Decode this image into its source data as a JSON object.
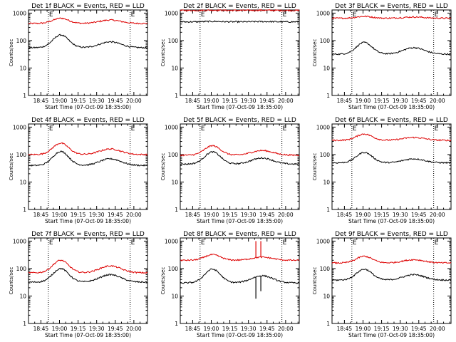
{
  "figure": {
    "ylabel": "Counts/sec",
    "xlabel": "Start Time (07-Oct-09 18:35:00)",
    "x_tick_labels": [
      "18:45",
      "19:00",
      "19:15",
      "19:30",
      "19:45",
      "20:00"
    ],
    "y_tick_labels": [
      "1",
      "10",
      "100",
      "1000"
    ],
    "series_colors": {
      "events": "#000000",
      "lld": "#dd0000"
    },
    "marker_label": "E"
  },
  "chart_data": [
    {
      "type": "line",
      "panel": 1,
      "title": "Det 1f BLACK = Events, RED = LLD",
      "xlabel": "Start Time (07-Oct-09 18:35:00)",
      "ylabel": "Counts/sec",
      "x_range_minutes": [
        0,
        96
      ],
      "ylim": [
        1,
        1000
      ],
      "yscale": "log",
      "dotted_lines_minutes": [
        16,
        82
      ],
      "events": {
        "base": 55,
        "peak1": 160,
        "peak2": 90
      },
      "lld": {
        "base": 420,
        "peak1": 650,
        "peak2": 560
      }
    },
    {
      "type": "line",
      "panel": 2,
      "title": "Det 2f BLACK = Events, RED = LLD",
      "xlabel": "Start Time (07-Oct-09 18:35:00)",
      "ylabel": "Counts/sec",
      "x_range_minutes": [
        0,
        96
      ],
      "ylim": [
        1,
        1000
      ],
      "yscale": "log",
      "dotted_lines_minutes": [
        16,
        82
      ],
      "events": {
        "base": 480,
        "peak1": 500,
        "peak2": 490
      },
      "lld": {
        "base": 1250,
        "peak1": 1280,
        "peak2": 1270
      }
    },
    {
      "type": "line",
      "panel": 3,
      "title": "Det 3f BLACK = Events, RED = LLD",
      "xlabel": "Start Time (07-Oct-09 18:35:00)",
      "ylabel": "Counts/sec",
      "x_range_minutes": [
        0,
        96
      ],
      "ylim": [
        1,
        1000
      ],
      "yscale": "log",
      "dotted_lines_minutes": [
        16,
        82
      ],
      "events": {
        "base": 32,
        "peak1": 85,
        "peak2": 55
      },
      "lld": {
        "base": 650,
        "peak1": 760,
        "peak2": 720
      }
    },
    {
      "type": "line",
      "panel": 4,
      "title": "Det 4f BLACK = Events, RED = LLD",
      "xlabel": "Start Time (07-Oct-09 18:35:00)",
      "ylabel": "Counts/sec",
      "x_range_minutes": [
        0,
        96
      ],
      "ylim": [
        1,
        1000
      ],
      "yscale": "log",
      "dotted_lines_minutes": [
        16,
        82
      ],
      "events": {
        "base": 40,
        "peak1": 130,
        "peak2": 70
      },
      "lld": {
        "base": 100,
        "peak1": 260,
        "peak2": 160
      }
    },
    {
      "type": "line",
      "panel": 5,
      "title": "Det 5f BLACK = Events, RED = LLD",
      "xlabel": "Start Time (07-Oct-09 18:35:00)",
      "ylabel": "Counts/sec",
      "x_range_minutes": [
        0,
        96
      ],
      "ylim": [
        1,
        1000
      ],
      "yscale": "log",
      "dotted_lines_minutes": [
        16,
        82
      ],
      "events": {
        "base": 45,
        "peak1": 125,
        "peak2": 75
      },
      "lld": {
        "base": 95,
        "peak1": 210,
        "peak2": 140
      }
    },
    {
      "type": "line",
      "panel": 6,
      "title": "Det 6f BLACK = Events, RED = LLD",
      "xlabel": "Start Time (07-Oct-09 18:35:00)",
      "ylabel": "Counts/sec",
      "x_range_minutes": [
        0,
        96
      ],
      "ylim": [
        1,
        1000
      ],
      "yscale": "log",
      "dotted_lines_minutes": [
        16,
        82
      ],
      "events": {
        "base": 50,
        "peak1": 120,
        "peak2": 70
      },
      "lld": {
        "base": 330,
        "peak1": 560,
        "peak2": 420
      }
    },
    {
      "type": "line",
      "panel": 7,
      "title": "Det 7f BLACK = Events, RED = LLD",
      "xlabel": "Start Time (07-Oct-09 18:35:00)",
      "ylabel": "Counts/sec",
      "x_range_minutes": [
        0,
        96
      ],
      "ylim": [
        1,
        1000
      ],
      "yscale": "log",
      "dotted_lines_minutes": [
        16,
        82
      ],
      "events": {
        "base": 32,
        "peak1": 100,
        "peak2": 60
      },
      "lld": {
        "base": 70,
        "peak1": 200,
        "peak2": 125
      }
    },
    {
      "type": "line",
      "panel": 8,
      "title": "Det 8f BLACK = Events, RED = LLD",
      "xlabel": "Start Time (07-Oct-09 18:35:00)",
      "ylabel": "Counts/sec",
      "x_range_minutes": [
        0,
        96
      ],
      "ylim": [
        1,
        1000
      ],
      "yscale": "log",
      "dotted_lines_minutes": [
        16,
        82
      ],
      "events": {
        "base": 30,
        "peak1": 95,
        "peak2": 55
      },
      "lld": {
        "base": 200,
        "peak1": 320,
        "peak2": 260
      },
      "spikes": [
        {
          "series": "lld",
          "minute": 61,
          "value": 1000
        },
        {
          "series": "lld",
          "minute": 65,
          "value": 1000
        },
        {
          "series": "events",
          "minute": 61,
          "value": 8
        },
        {
          "series": "events",
          "minute": 65,
          "value": 15
        }
      ]
    },
    {
      "type": "line",
      "panel": 9,
      "title": "Det 9f BLACK = Events, RED = LLD",
      "xlabel": "Start Time (07-Oct-09 18:35:00)",
      "ylabel": "Counts/sec",
      "x_range_minutes": [
        0,
        96
      ],
      "ylim": [
        1,
        1000
      ],
      "yscale": "log",
      "dotted_lines_minutes": [
        16,
        82
      ],
      "events": {
        "base": 38,
        "peak1": 95,
        "peak2": 60
      },
      "lld": {
        "base": 160,
        "peak1": 280,
        "peak2": 210
      }
    }
  ]
}
